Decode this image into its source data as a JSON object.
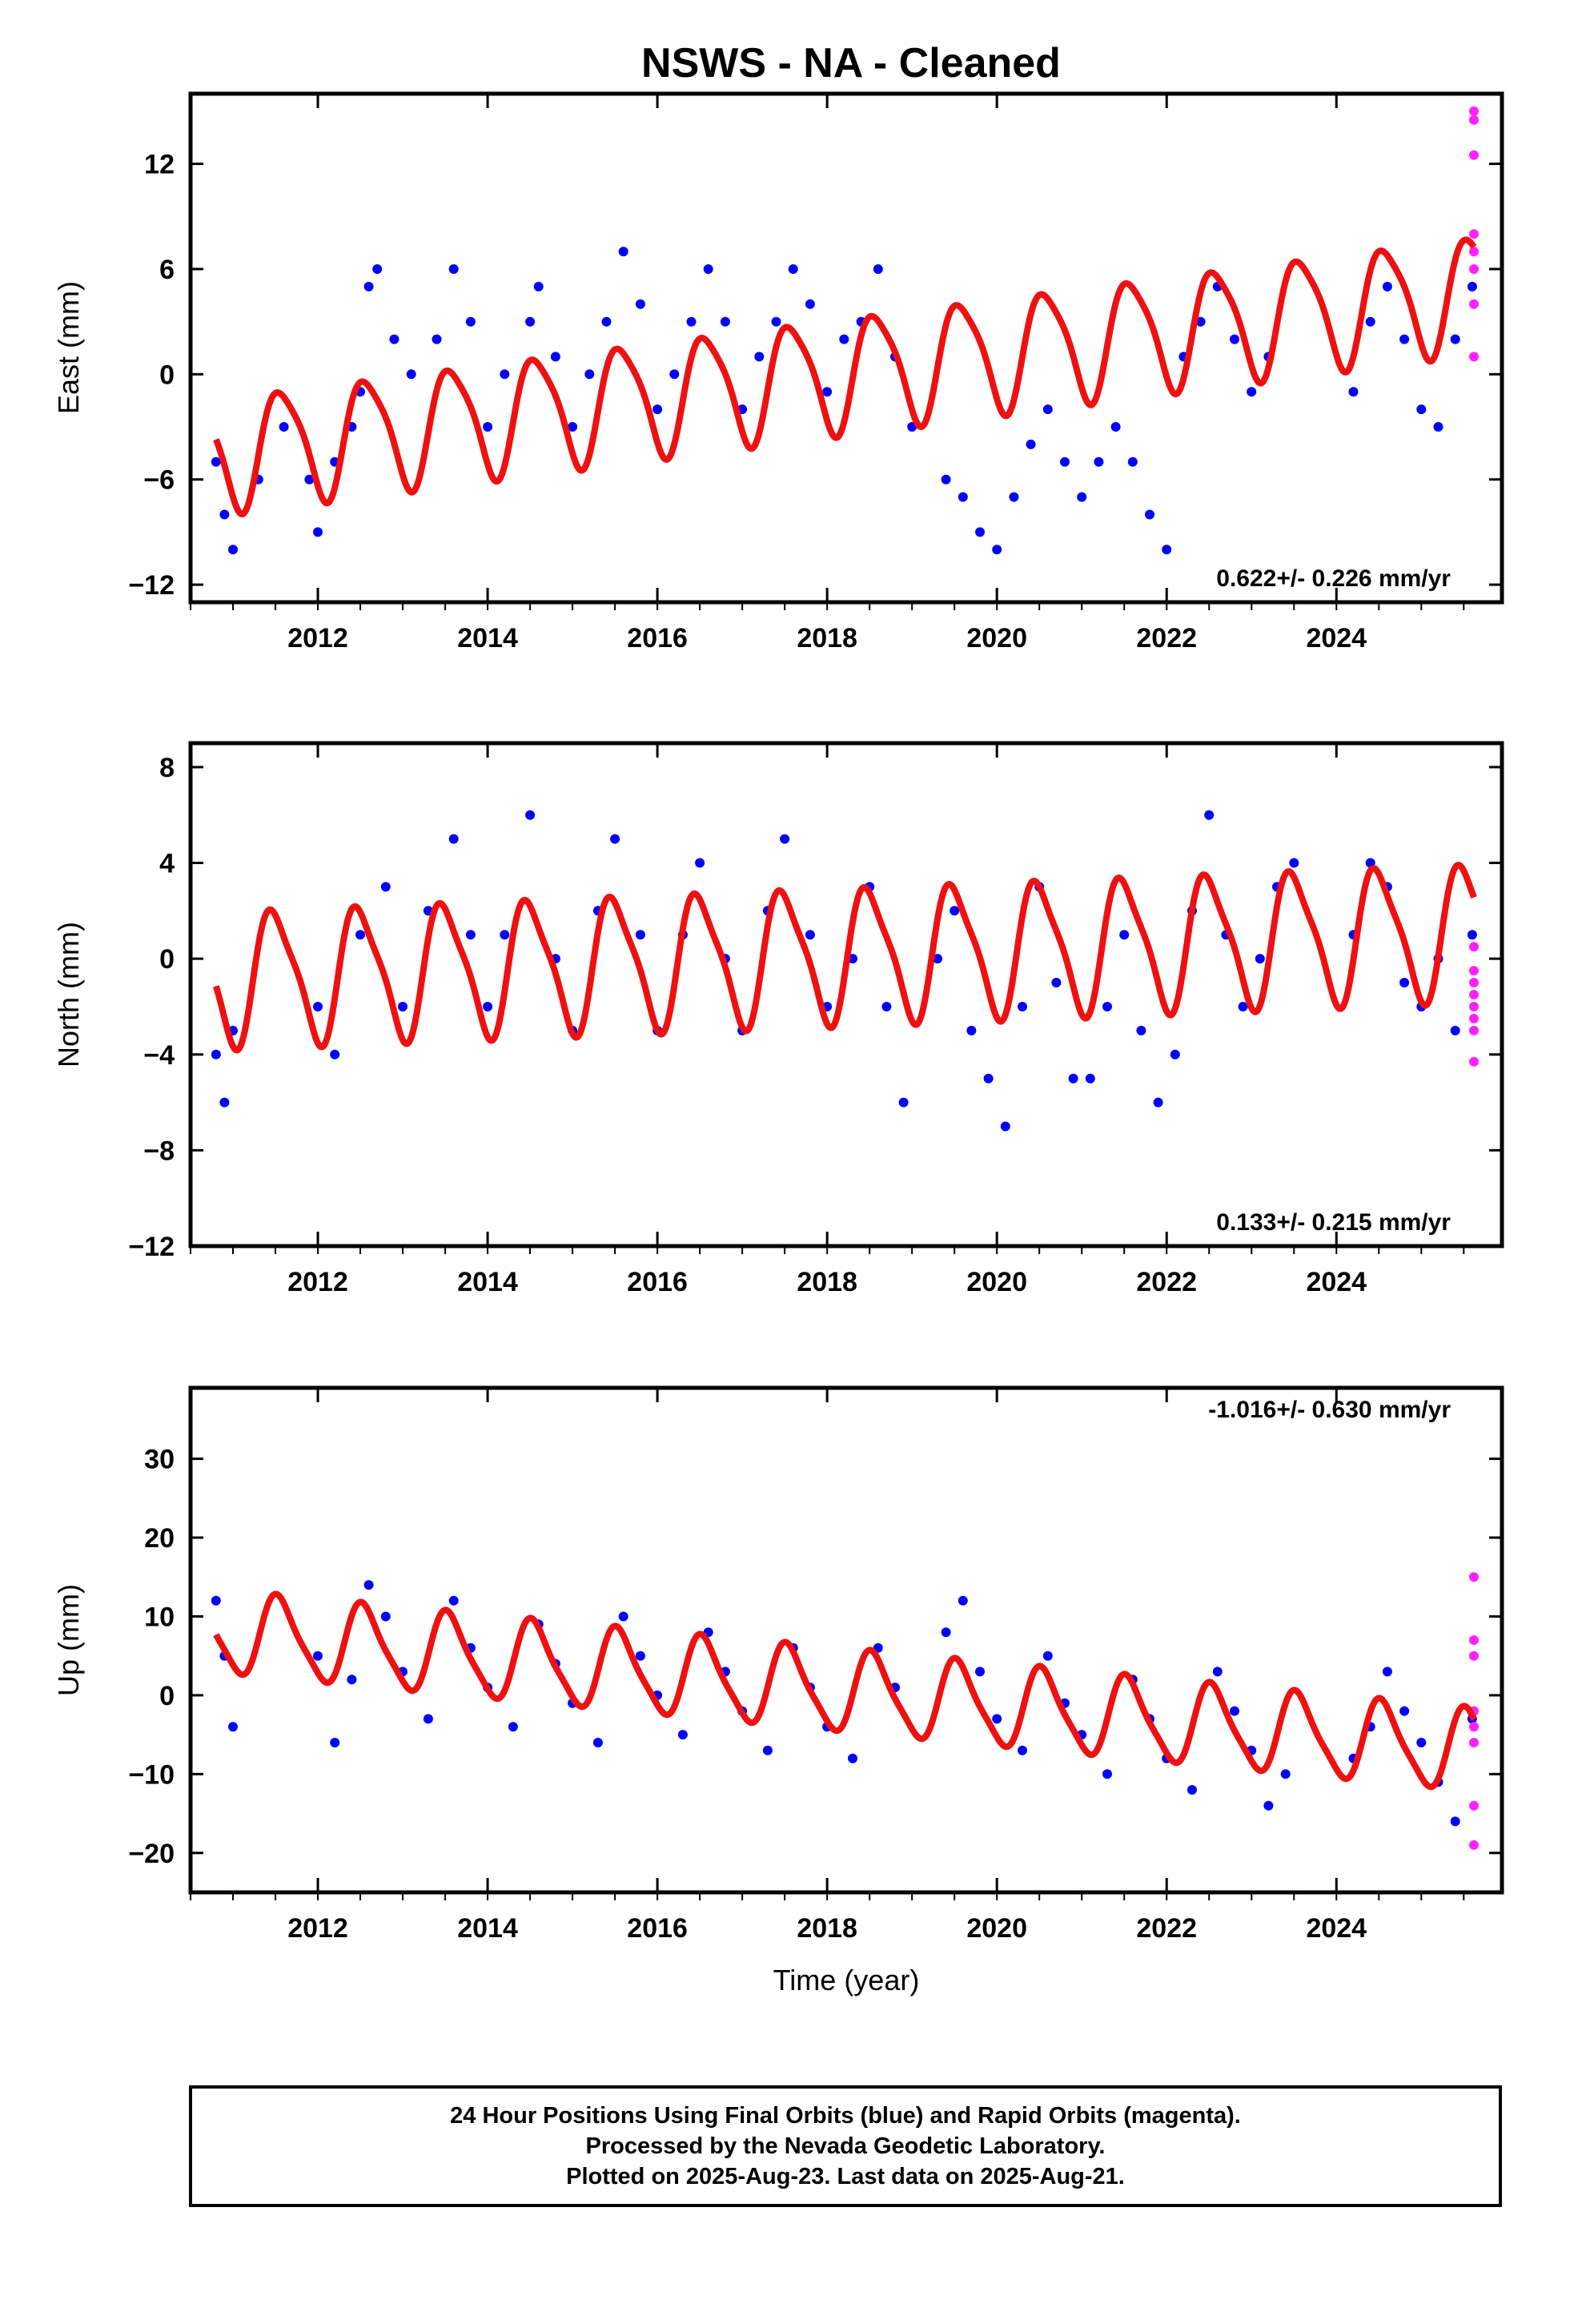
{
  "figure": {
    "title": "NSWS  - NA - Cleaned",
    "xlabel": "Time (year)",
    "footer": [
      "24 Hour Positions Using Final Orbits (blue) and Rapid Orbits (magenta).",
      "Processed by the Nevada Geodetic Laboratory.",
      "Plotted on 2025-Aug-23. Last data on 2025-Aug-21."
    ],
    "colors": {
      "final": "#0000ff",
      "rapid": "#ff22ff",
      "model": "#ee1111"
    }
  },
  "chart_data": [
    {
      "type": "scatter",
      "ylabel": "East (mm)",
      "xlim": [
        2010.5,
        2025.95
      ],
      "ylim": [
        -13,
        16
      ],
      "yticks": [
        -12,
        -6,
        0,
        6,
        12
      ],
      "xticks": [
        2012,
        2014,
        2016,
        2018,
        2020,
        2022,
        2024
      ],
      "rate_label": "0.622+/- 0.226 mm/yr",
      "rate_position": "bottom-right",
      "series": [
        {
          "role": "final",
          "x": [
            2010.8,
            2010.9,
            2011.0,
            2011.3,
            2011.6,
            2011.9,
            2012.0,
            2012.2,
            2012.4,
            2012.5,
            2012.6,
            2012.7,
            2012.9,
            2013.1,
            2013.4,
            2013.6,
            2013.8,
            2014.0,
            2014.2,
            2014.5,
            2014.6,
            2014.8,
            2015.0,
            2015.2,
            2015.4,
            2015.6,
            2015.8,
            2016.0,
            2016.2,
            2016.4,
            2016.6,
            2016.8,
            2017.0,
            2017.2,
            2017.4,
            2017.6,
            2017.8,
            2018.0,
            2018.2,
            2018.4,
            2018.6,
            2018.8,
            2019.0,
            2019.4,
            2019.6,
            2019.8,
            2020.0,
            2020.2,
            2020.4,
            2020.6,
            2020.8,
            2021.0,
            2021.2,
            2021.4,
            2021.6,
            2021.8,
            2022.0,
            2022.2,
            2022.4,
            2022.6,
            2022.8,
            2023.0,
            2023.2,
            2024.2,
            2024.4,
            2024.6,
            2024.8,
            2025.0,
            2025.2,
            2025.4,
            2025.6
          ],
          "y": [
            -5,
            -8,
            -10,
            -6,
            -3,
            -6,
            -9,
            -5,
            -3,
            -1,
            5,
            6,
            2,
            0,
            2,
            6,
            3,
            -3,
            0,
            3,
            5,
            1,
            -3,
            0,
            3,
            7,
            4,
            -2,
            0,
            3,
            6,
            3,
            -2,
            1,
            3,
            6,
            4,
            -1,
            2,
            3,
            6,
            1,
            -3,
            -6,
            -7,
            -9,
            -10,
            -7,
            -4,
            -2,
            -5,
            -7,
            -5,
            -3,
            -5,
            -8,
            -10,
            1,
            3,
            5,
            2,
            -1,
            1,
            -1,
            3,
            5,
            2,
            -2,
            -3,
            2,
            5
          ]
        },
        {
          "role": "rapid",
          "x": [
            2025.62,
            2025.62,
            2025.62,
            2025.62,
            2025.62,
            2025.62,
            2025.62,
            2025.62
          ],
          "y": [
            15,
            14.5,
            12.5,
            8,
            7,
            6,
            4,
            1
          ]
        },
        {
          "role": "model",
          "mean": -4.5,
          "trend_mm_per_yr": 0.622,
          "t0": 2010.8,
          "annual_amplitude": 3.2,
          "annual_peak": 2011.58,
          "semiannual_amplitude": 0.6,
          "semiannual_peak": 2011.4
        }
      ]
    },
    {
      "type": "scatter",
      "ylabel": "North (mm)",
      "xlim": [
        2010.5,
        2025.95
      ],
      "ylim": [
        -12,
        9
      ],
      "yticks": [
        -12,
        -8,
        -4,
        0,
        4,
        8
      ],
      "xticks": [
        2012,
        2014,
        2016,
        2018,
        2020,
        2022,
        2024
      ],
      "rate_label": "0.133+/- 0.215 mm/yr",
      "rate_position": "bottom-right",
      "series": [
        {
          "role": "final",
          "x": [
            2010.8,
            2010.9,
            2011.0,
            2012.0,
            2012.2,
            2012.5,
            2012.8,
            2013.0,
            2013.3,
            2013.6,
            2013.8,
            2014.0,
            2014.2,
            2014.5,
            2014.8,
            2015.0,
            2015.3,
            2015.5,
            2015.8,
            2016.0,
            2016.3,
            2016.5,
            2016.8,
            2017.0,
            2017.3,
            2017.5,
            2017.8,
            2018.0,
            2018.3,
            2018.5,
            2018.7,
            2018.9,
            2019.3,
            2019.5,
            2019.7,
            2019.9,
            2020.1,
            2020.3,
            2020.5,
            2020.7,
            2020.9,
            2021.1,
            2021.3,
            2021.5,
            2021.7,
            2021.9,
            2022.1,
            2022.3,
            2022.5,
            2022.7,
            2022.9,
            2023.1,
            2023.3,
            2023.5,
            2024.2,
            2024.4,
            2024.6,
            2024.8,
            2025.0,
            2025.2,
            2025.4,
            2025.6
          ],
          "y": [
            -4,
            -6,
            -3,
            -2,
            -4,
            1,
            3,
            -2,
            2,
            5,
            1,
            -2,
            1,
            6,
            0,
            -3,
            2,
            5,
            1,
            -3,
            1,
            4,
            0,
            -3,
            2,
            5,
            1,
            -2,
            0,
            3,
            -2,
            -6,
            0,
            2,
            -3,
            -5,
            -7,
            -2,
            3,
            -1,
            -5,
            -5,
            -2,
            1,
            -3,
            -6,
            -4,
            2,
            6,
            1,
            -2,
            0,
            3,
            4,
            1,
            4,
            3,
            -1,
            -2,
            0,
            -3,
            1
          ]
        },
        {
          "role": "rapid",
          "x": [
            2025.62,
            2025.62,
            2025.62,
            2025.62,
            2025.62,
            2025.62,
            2025.62,
            2025.62
          ],
          "y": [
            0.5,
            -0.5,
            -1.0,
            -1.5,
            -2.0,
            -2.5,
            -3.0,
            -4.3
          ]
        },
        {
          "role": "model",
          "mean": -0.8,
          "trend_mm_per_yr": 0.133,
          "t0": 2010.8,
          "annual_amplitude": 2.7,
          "annual_peak": 2011.5,
          "semiannual_amplitude": 0.6,
          "semiannual_peak": 2011.35
        }
      ]
    },
    {
      "type": "scatter",
      "ylabel": "Up (mm)",
      "xlim": [
        2010.5,
        2025.95
      ],
      "ylim": [
        -25,
        39
      ],
      "yticks": [
        -20,
        -10,
        0,
        10,
        20,
        30
      ],
      "xticks": [
        2012,
        2014,
        2016,
        2018,
        2020,
        2022,
        2024
      ],
      "rate_label": "-1.016+/- 0.630 mm/yr",
      "rate_position": "top-right",
      "series": [
        {
          "role": "final",
          "x": [
            2010.8,
            2010.9,
            2011.0,
            2012.0,
            2012.2,
            2012.4,
            2012.6,
            2012.8,
            2013.0,
            2013.3,
            2013.6,
            2013.8,
            2014.0,
            2014.3,
            2014.6,
            2014.8,
            2015.0,
            2015.3,
            2015.6,
            2015.8,
            2016.0,
            2016.3,
            2016.6,
            2016.8,
            2017.0,
            2017.3,
            2017.6,
            2017.8,
            2018.0,
            2018.3,
            2018.6,
            2018.8,
            2019.4,
            2019.6,
            2019.8,
            2020.0,
            2020.3,
            2020.6,
            2020.8,
            2021.0,
            2021.3,
            2021.6,
            2021.8,
            2022.0,
            2022.3,
            2022.6,
            2022.8,
            2023.0,
            2023.2,
            2023.4,
            2024.2,
            2024.4,
            2024.6,
            2024.8,
            2025.0,
            2025.2,
            2025.4,
            2025.6
          ],
          "y": [
            12,
            5,
            -4,
            5,
            -6,
            2,
            14,
            10,
            3,
            -3,
            12,
            6,
            1,
            -4,
            9,
            4,
            -1,
            -6,
            10,
            5,
            0,
            -5,
            8,
            3,
            -2,
            -7,
            6,
            1,
            -4,
            -8,
            6,
            1,
            8,
            12,
            3,
            -3,
            -7,
            5,
            -1,
            -5,
            -10,
            2,
            -3,
            -8,
            -12,
            3,
            -2,
            -7,
            -14,
            -10,
            -8,
            -4,
            3,
            -2,
            -6,
            -11,
            -16,
            -3
          ]
        },
        {
          "role": "rapid",
          "x": [
            2025.62,
            2025.62,
            2025.62,
            2025.62,
            2025.62,
            2025.62,
            2025.62,
            2025.62
          ],
          "y": [
            15,
            7,
            5,
            -2,
            -4,
            -6,
            -14,
            -19
          ]
        },
        {
          "role": "model",
          "mean": 8.0,
          "trend_mm_per_yr": -1.016,
          "t0": 2010.8,
          "annual_amplitude": 5.0,
          "annual_peak": 2011.55,
          "semiannual_amplitude": 1.0,
          "semiannual_peak": 2011.45
        }
      ]
    }
  ]
}
